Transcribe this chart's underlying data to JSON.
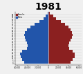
{
  "title": "1981",
  "title_fontsize": 10,
  "male_color": "#2255aa",
  "female_color": "#8b2020",
  "background_color": "#f0f0f0",
  "legend_female": "Females",
  "legend_male": "Males",
  "age_groups": [
    0,
    5,
    10,
    15,
    20,
    25,
    30,
    35,
    40,
    45,
    50,
    55,
    60,
    65,
    70,
    75,
    80,
    85,
    90
  ],
  "males": [
    47000,
    51000,
    54000,
    55000,
    51000,
    42000,
    40000,
    41000,
    44000,
    46000,
    47000,
    45000,
    41000,
    35000,
    27000,
    17000,
    9000,
    4500,
    1200
  ],
  "females": [
    44500,
    48500,
    51500,
    52500,
    48500,
    41000,
    39500,
    41500,
    44000,
    46500,
    48500,
    47000,
    44000,
    39500,
    33500,
    24500,
    16000,
    9500,
    3800
  ],
  "xlim": 65000,
  "x_ticks": [
    -60000,
    -40000,
    -20000,
    0,
    20000,
    40000,
    60000
  ],
  "x_tick_labels": [
    "-60,000",
    "-40,000",
    "-20,000",
    "0",
    "20,000",
    "40,000",
    "60,000"
  ],
  "ytick_step": 5,
  "ymax": 95
}
